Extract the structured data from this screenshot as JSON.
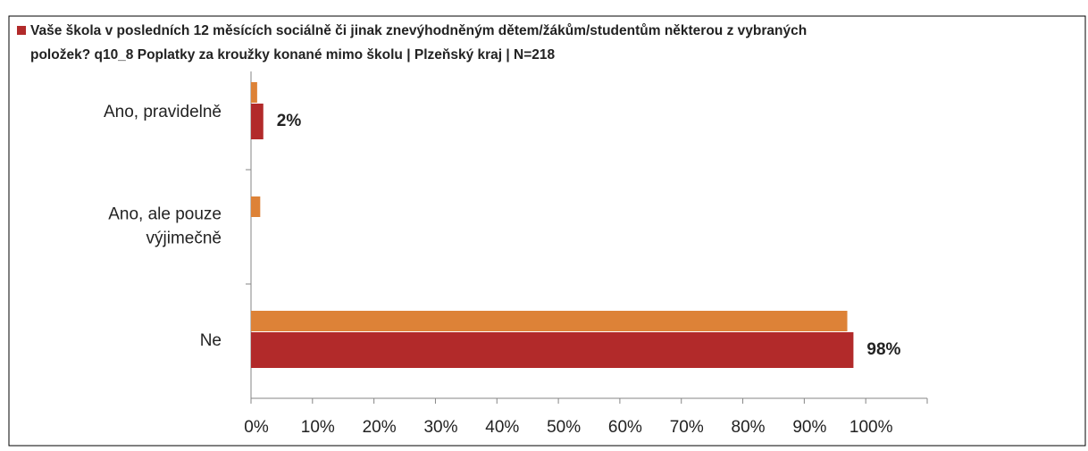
{
  "chart_data": {
    "type": "hbar",
    "categories": [
      "Ano, pravidelně",
      [
        "Ano, ale pouze",
        "výjimečně"
      ],
      "Ne"
    ],
    "series": [
      {
        "color": "#dd8237",
        "values": [
          1,
          1.5,
          97
        ]
      },
      {
        "name": [
          "Vaše škola v posledních 12 měsících sociálně či jinak znevýhodněným dětem/žákům/studentům některou z vybraných",
          "položek? q10_8  Poplatky za kroužky konané mimo školu   | Plzeňský kraj | N=218"
        ],
        "color": "#b22a2a",
        "values": [
          2,
          0,
          98
        ],
        "value_labels": [
          "2%",
          null,
          "98%"
        ]
      }
    ],
    "xlim": [
      0,
      110
    ],
    "xticks": [
      {
        "value": 0,
        "label": "0%"
      },
      {
        "value": 10,
        "label": "10%"
      },
      {
        "value": 20,
        "label": "20%"
      },
      {
        "value": 30,
        "label": "30%"
      },
      {
        "value": 40,
        "label": "40%"
      },
      {
        "value": 50,
        "label": "50%"
      },
      {
        "value": 60,
        "label": "60%"
      },
      {
        "value": 70,
        "label": "70%"
      },
      {
        "value": 80,
        "label": "80%"
      },
      {
        "value": 90,
        "label": "90%"
      },
      {
        "value": 100,
        "label": "100%"
      }
    ],
    "legend": "top"
  }
}
